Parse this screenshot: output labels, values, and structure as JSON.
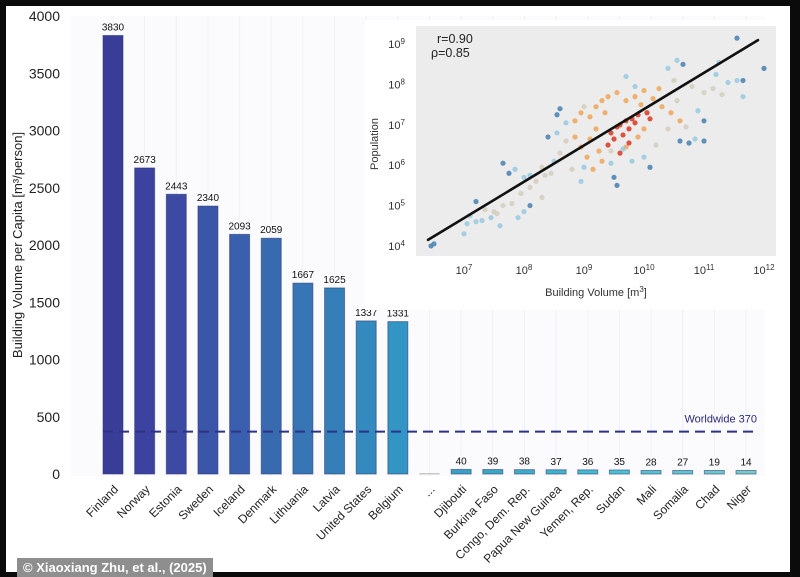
{
  "credit": "© Xiaoxiang Zhu, et al., (2025)",
  "chart_data": [
    {
      "type": "bar",
      "title": "",
      "xlabel": "",
      "ylabel": "Building Volume per Capita [m³/person]",
      "ylim": [
        0,
        4000
      ],
      "yticks": [
        0,
        500,
        1000,
        1500,
        2000,
        2500,
        3000,
        3500,
        4000
      ],
      "grid": "vertical light",
      "categories": [
        "Finland",
        "Norway",
        "Estonia",
        "Sweden",
        "Iceland",
        "Denmark",
        "Lithuania",
        "Latvia",
        "United States",
        "Belgium",
        "...",
        "Djibouti",
        "Burkina Faso",
        "Congo, Dem. Rep.",
        "Papua New Guinea",
        "Yemen, Rep.",
        "Sudan",
        "Mali",
        "Somalia",
        "Chad",
        "Niger"
      ],
      "values": [
        3830,
        2673,
        2443,
        2340,
        2093,
        2059,
        1667,
        1625,
        1337,
        1331,
        null,
        40,
        39,
        38,
        37,
        36,
        35,
        28,
        27,
        19,
        14
      ],
      "value_labels": [
        "3830",
        "2673",
        "2443",
        "2340",
        "2093",
        "2059",
        "1667",
        "1625",
        "1337",
        "1331",
        "",
        "40",
        "39",
        "38",
        "37",
        "36",
        "35",
        "28",
        "27",
        "19",
        "14"
      ],
      "colors": [
        "#3a3d98",
        "#3b42a0",
        "#3c4aa4",
        "#3b55a9",
        "#3a5fae",
        "#386aaf",
        "#3775b5",
        "#357fb8",
        "#3489be",
        "#3395c3",
        "#c8c8c8",
        "#3aa0c4",
        "#3ca6c6",
        "#3eacca",
        "#42b2cc",
        "#46b8cf",
        "#4dbfd2",
        "#55c2d0",
        "#5fc6d0",
        "#6ac9cc",
        "#74ccc6"
      ],
      "reference_line": {
        "value": 370,
        "label": "Worldwide 370",
        "style": "dashed",
        "color": "#2e3286"
      }
    },
    {
      "type": "scatter",
      "title": "",
      "xlabel": "Building Volume [m³]",
      "ylabel": "Population",
      "xscale": "log",
      "yscale": "log",
      "xlim_log10": [
        6.2,
        12.2
      ],
      "ylim_log10": [
        3.75,
        9.45
      ],
      "xticks": [
        "10^7",
        "10^8",
        "10^9",
        "10^10",
        "10^11",
        "10^12"
      ],
      "yticks": [
        "10^4",
        "10^5",
        "10^6",
        "10^7",
        "10^8",
        "10^9"
      ],
      "xtick_values_log10": [
        7,
        8,
        9,
        10,
        11,
        12
      ],
      "ytick_values_log10": [
        4,
        5,
        6,
        7,
        8,
        9
      ],
      "annotations": [
        "r=0.90",
        "ρ=0.85"
      ],
      "regression_line_log10": {
        "x": [
          6.4,
          11.9
        ],
        "y": [
          4.15,
          9.1
        ],
        "color": "#111111"
      },
      "color_scale": {
        "dark_blue": "#4f86b4",
        "light_blue": "#9ccbe0",
        "beige": "#d6cfc0",
        "orange": "#f0a962",
        "red": "#d9432e"
      },
      "points_log10": [
        [
          6.45,
          4.0,
          "dark_blue"
        ],
        [
          6.5,
          4.05,
          "dark_blue"
        ],
        [
          7.0,
          4.3,
          "light_blue"
        ],
        [
          7.05,
          4.55,
          "light_blue"
        ],
        [
          7.2,
          4.6,
          "light_blue"
        ],
        [
          7.3,
          4.63,
          "light_blue"
        ],
        [
          7.45,
          4.7,
          "light_blue"
        ],
        [
          7.6,
          4.5,
          "light_blue"
        ],
        [
          7.2,
          5.1,
          "dark_blue"
        ],
        [
          7.5,
          4.85,
          "beige"
        ],
        [
          7.65,
          5.0,
          "beige"
        ],
        [
          7.8,
          5.05,
          "beige"
        ],
        [
          7.9,
          4.7,
          "light_blue"
        ],
        [
          8.0,
          4.85,
          "light_blue"
        ],
        [
          8.1,
          5.0,
          "dark_blue"
        ],
        [
          7.95,
          5.3,
          "beige"
        ],
        [
          8.1,
          5.45,
          "beige"
        ],
        [
          8.2,
          5.6,
          "beige"
        ],
        [
          8.0,
          5.7,
          "light_blue"
        ],
        [
          7.85,
          5.9,
          "light_blue"
        ],
        [
          8.3,
          5.2,
          "beige"
        ],
        [
          8.45,
          5.8,
          "beige"
        ],
        [
          7.65,
          6.05,
          "dark_blue"
        ],
        [
          7.75,
          5.8,
          "dark_blue"
        ],
        [
          8.5,
          6.1,
          "light_blue"
        ],
        [
          8.6,
          6.3,
          "beige"
        ],
        [
          8.8,
          5.9,
          "beige"
        ],
        [
          8.95,
          5.6,
          "light_blue"
        ],
        [
          9.0,
          5.95,
          "light_blue"
        ],
        [
          8.7,
          6.6,
          "beige"
        ],
        [
          8.85,
          6.7,
          "orange"
        ],
        [
          8.95,
          6.45,
          "orange"
        ],
        [
          9.05,
          6.2,
          "orange"
        ],
        [
          9.1,
          6.65,
          "orange"
        ],
        [
          9.2,
          6.9,
          "orange"
        ],
        [
          9.25,
          6.35,
          "orange"
        ],
        [
          8.6,
          7.4,
          "dark_blue"
        ],
        [
          8.55,
          7.25,
          "dark_blue"
        ],
        [
          8.4,
          6.7,
          "dark_blue"
        ],
        [
          8.55,
          6.8,
          "light_blue"
        ],
        [
          8.7,
          7.05,
          "light_blue"
        ],
        [
          8.85,
          7.1,
          "orange"
        ],
        [
          8.95,
          7.3,
          "orange"
        ],
        [
          9.0,
          7.45,
          "beige"
        ],
        [
          9.1,
          7.2,
          "orange"
        ],
        [
          9.2,
          7.45,
          "orange"
        ],
        [
          9.3,
          7.6,
          "orange"
        ],
        [
          9.35,
          7.3,
          "orange"
        ],
        [
          9.4,
          6.5,
          "red"
        ],
        [
          9.45,
          6.8,
          "red"
        ],
        [
          9.5,
          6.65,
          "red"
        ],
        [
          9.55,
          6.95,
          "red"
        ],
        [
          9.6,
          7.0,
          "red"
        ],
        [
          9.65,
          6.75,
          "red"
        ],
        [
          9.7,
          7.1,
          "red"
        ],
        [
          9.75,
          6.9,
          "red"
        ],
        [
          9.8,
          7.15,
          "red"
        ],
        [
          9.85,
          7.05,
          "red"
        ],
        [
          9.9,
          7.25,
          "red"
        ],
        [
          9.6,
          6.3,
          "red"
        ],
        [
          9.7,
          6.45,
          "orange"
        ],
        [
          9.75,
          6.55,
          "red"
        ],
        [
          9.9,
          6.7,
          "orange"
        ],
        [
          10.0,
          6.9,
          "orange"
        ],
        [
          10.05,
          7.3,
          "red"
        ],
        [
          10.1,
          7.15,
          "red"
        ],
        [
          9.95,
          7.5,
          "orange"
        ],
        [
          9.4,
          7.7,
          "orange"
        ],
        [
          9.55,
          7.8,
          "orange"
        ],
        [
          9.7,
          7.6,
          "orange"
        ],
        [
          9.85,
          7.7,
          "orange"
        ],
        [
          10.0,
          7.85,
          "orange"
        ],
        [
          10.15,
          7.65,
          "orange"
        ],
        [
          10.25,
          7.9,
          "orange"
        ],
        [
          10.3,
          7.45,
          "orange"
        ],
        [
          10.45,
          7.3,
          "orange"
        ],
        [
          10.55,
          7.6,
          "beige"
        ],
        [
          10.6,
          7.1,
          "orange"
        ],
        [
          10.7,
          6.95,
          "beige"
        ],
        [
          10.4,
          6.9,
          "beige"
        ],
        [
          10.2,
          6.5,
          "beige"
        ],
        [
          10.0,
          6.2,
          "light_blue"
        ],
        [
          10.1,
          5.95,
          "dark_blue"
        ],
        [
          9.8,
          6.1,
          "light_blue"
        ],
        [
          10.6,
          6.6,
          "dark_blue"
        ],
        [
          10.75,
          6.55,
          "dark_blue"
        ],
        [
          10.85,
          6.65,
          "light_blue"
        ],
        [
          11.0,
          6.6,
          "dark_blue"
        ],
        [
          11.0,
          7.1,
          "dark_blue"
        ],
        [
          10.9,
          7.35,
          "light_blue"
        ],
        [
          10.5,
          8.1,
          "beige"
        ],
        [
          10.8,
          7.95,
          "beige"
        ],
        [
          11.0,
          7.8,
          "beige"
        ],
        [
          11.15,
          7.9,
          "beige"
        ],
        [
          11.3,
          7.75,
          "beige"
        ],
        [
          10.4,
          8.4,
          "light_blue"
        ],
        [
          10.55,
          8.6,
          "light_blue"
        ],
        [
          10.65,
          8.5,
          "dark_blue"
        ],
        [
          11.2,
          8.25,
          "light_blue"
        ],
        [
          11.4,
          8.05,
          "light_blue"
        ],
        [
          11.55,
          8.1,
          "light_blue"
        ],
        [
          11.65,
          8.1,
          "dark_blue"
        ],
        [
          11.25,
          8.55,
          "light_blue"
        ],
        [
          11.55,
          9.15,
          "dark_blue"
        ],
        [
          12.0,
          8.4,
          "dark_blue"
        ],
        [
          11.65,
          7.7,
          "light_blue"
        ],
        [
          9.45,
          6.05,
          "light_blue"
        ],
        [
          9.5,
          5.7,
          "dark_blue"
        ],
        [
          9.55,
          5.5,
          "dark_blue"
        ],
        [
          9.65,
          6.4,
          "light_blue"
        ],
        [
          9.15,
          5.9,
          "orange"
        ],
        [
          9.3,
          6.1,
          "orange"
        ],
        [
          9.45,
          6.35,
          "beige"
        ],
        [
          8.3,
          5.95,
          "beige"
        ],
        [
          8.35,
          5.75,
          "beige"
        ],
        [
          8.1,
          5.75,
          "light_blue"
        ],
        [
          7.55,
          4.8,
          "beige"
        ],
        [
          7.35,
          4.9,
          "beige"
        ],
        [
          7.1,
          4.75,
          "light_blue"
        ],
        [
          9.85,
          7.95,
          "light_blue"
        ],
        [
          9.7,
          8.2,
          "light_blue"
        ]
      ]
    }
  ]
}
